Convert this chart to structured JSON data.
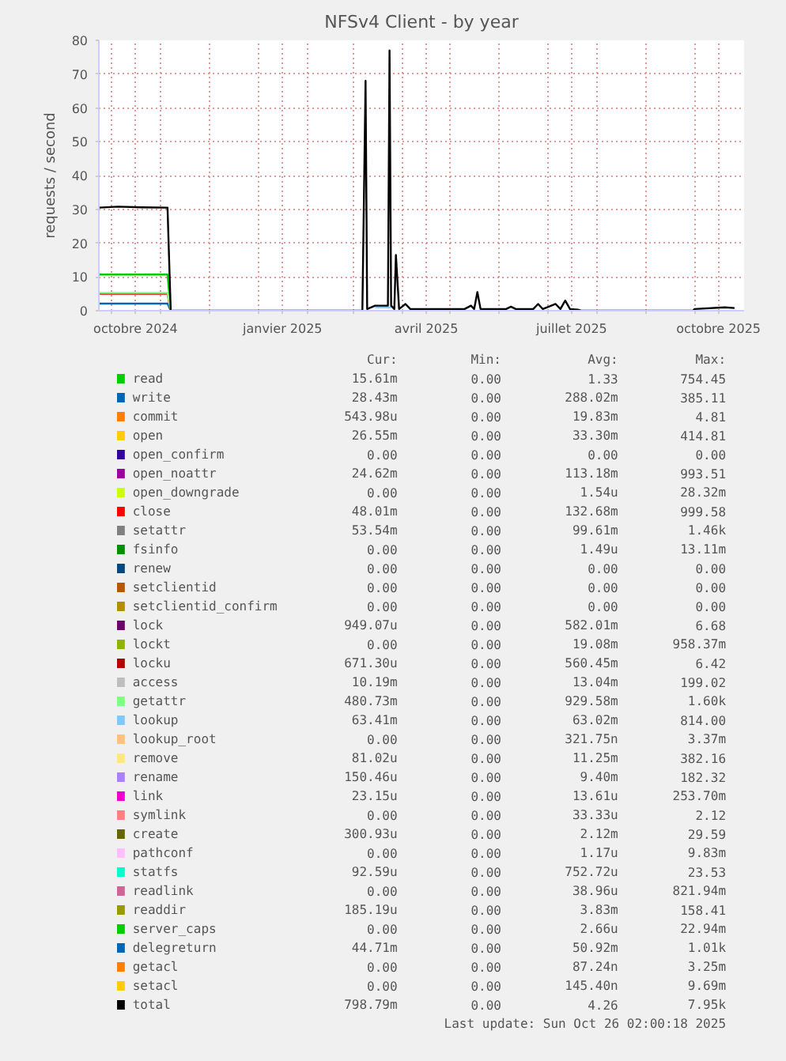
{
  "chart_data": {
    "type": "line",
    "title": "NFSv4 Client - by year",
    "ylabel": "requests / second",
    "x": [
      "2024-09-23",
      "2024-10-05",
      "2024-10-20",
      "2024-11-05",
      "2024-11-07",
      "2024-12-01",
      "2025-01-15",
      "2025-03-07",
      "2025-03-09",
      "2025-03-10",
      "2025-03-15",
      "2025-03-23",
      "2025-03-24",
      "2025-03-25",
      "2025-03-27",
      "2025-03-28",
      "2025-03-30",
      "2025-04-03",
      "2025-04-06",
      "2025-05-10",
      "2025-05-14",
      "2025-05-16",
      "2025-05-18",
      "2025-05-20",
      "2025-06-05",
      "2025-06-08",
      "2025-06-11",
      "2025-06-22",
      "2025-06-25",
      "2025-06-28",
      "2025-07-06",
      "2025-07-09",
      "2025-07-12",
      "2025-07-15",
      "2025-07-20",
      "2025-07-22",
      "2025-09-30",
      "2025-10-01",
      "2025-10-20",
      "2025-10-26"
    ],
    "xlim": [
      "2024-09-23",
      "2025-11-01"
    ],
    "xticks": [
      {
        "value": "2024-10-01",
        "label": null
      },
      {
        "value": "2024-10-16",
        "label": "octobre 2024"
      },
      {
        "value": "2024-11-01",
        "label": null
      },
      {
        "value": "2024-12-01",
        "label": null
      },
      {
        "value": "2025-01-01",
        "label": null
      },
      {
        "value": "2025-01-16",
        "label": "janvier 2025"
      },
      {
        "value": "2025-02-01",
        "label": null
      },
      {
        "value": "2025-03-01",
        "label": null
      },
      {
        "value": "2025-04-01",
        "label": null
      },
      {
        "value": "2025-04-16",
        "label": "avril 2025"
      },
      {
        "value": "2025-05-01",
        "label": null
      },
      {
        "value": "2025-06-01",
        "label": null
      },
      {
        "value": "2025-07-01",
        "label": null
      },
      {
        "value": "2025-07-16",
        "label": "juillet 2025"
      },
      {
        "value": "2025-08-01",
        "label": null
      },
      {
        "value": "2025-09-01",
        "label": null
      },
      {
        "value": "2025-10-01",
        "label": null
      },
      {
        "value": "2025-10-16",
        "label": "octobre 2025"
      }
    ],
    "ylim": [
      0,
      80
    ],
    "yticks": [
      0,
      10,
      20,
      30,
      40,
      50,
      60,
      70,
      80
    ],
    "grid": true,
    "legend": "bottom",
    "series": [
      {
        "name": "read",
        "color": "#00cc00",
        "x": [
          "2024-09-23",
          "2024-10-05",
          "2024-10-20",
          "2024-11-05",
          "2024-11-07"
        ],
        "values": [
          10.7,
          10.7,
          10.7,
          10.7,
          0
        ]
      },
      {
        "name": "write",
        "color": "#0066b3",
        "x": [
          "2024-09-23",
          "2024-10-05",
          "2024-10-20",
          "2024-11-05",
          "2024-11-07"
        ],
        "values": [
          2.1,
          2.1,
          2.1,
          2.1,
          0
        ]
      },
      {
        "name": "commit",
        "color": "#ff8000",
        "values": [
          null,
          null,
          null,
          null,
          null,
          null,
          null,
          null,
          null,
          null,
          null,
          null,
          null,
          null,
          null,
          null,
          null,
          null,
          null,
          null,
          null,
          null,
          null,
          null,
          null,
          null,
          null,
          null,
          null,
          null,
          null,
          null,
          null,
          null,
          null,
          null,
          null,
          null,
          null,
          null
        ]
      },
      {
        "name": "open",
        "color": "#ffcc00",
        "values": [
          null,
          null,
          null,
          null,
          null,
          null,
          null,
          null,
          null,
          null,
          null,
          null,
          null,
          null,
          null,
          null,
          null,
          null,
          null,
          null,
          null,
          null,
          null,
          null,
          null,
          null,
          null,
          null,
          null,
          null,
          null,
          null,
          null,
          null,
          null,
          null,
          null,
          null,
          null,
          null
        ]
      },
      {
        "name": "open_confirm",
        "color": "#330099",
        "values": [
          null,
          null,
          null,
          null,
          null,
          null,
          null,
          null,
          null,
          null,
          null,
          null,
          null,
          null,
          null,
          null,
          null,
          null,
          null,
          null,
          null,
          null,
          null,
          null,
          null,
          null,
          null,
          null,
          null,
          null,
          null,
          null,
          null,
          null,
          null,
          null,
          null,
          null,
          null,
          null
        ]
      },
      {
        "name": "open_noattr",
        "color": "#990099",
        "values": [
          null,
          null,
          null,
          null,
          null,
          null,
          null,
          null,
          null,
          null,
          null,
          null,
          null,
          null,
          null,
          null,
          null,
          null,
          null,
          null,
          null,
          null,
          null,
          null,
          null,
          null,
          null,
          null,
          null,
          null,
          null,
          null,
          null,
          null,
          null,
          null,
          null,
          null,
          null,
          null
        ]
      },
      {
        "name": "open_downgrade",
        "color": "#ccff00",
        "values": [
          null,
          null,
          null,
          null,
          null,
          null,
          null,
          null,
          null,
          null,
          null,
          null,
          null,
          null,
          null,
          null,
          null,
          null,
          null,
          null,
          null,
          null,
          null,
          null,
          null,
          null,
          null,
          null,
          null,
          null,
          null,
          null,
          null,
          null,
          null,
          null,
          null,
          null,
          null,
          null
        ]
      },
      {
        "name": "close",
        "color": "#ff0000",
        "x": [
          "2024-09-23",
          "2024-10-05",
          "2024-10-20",
          "2024-11-05",
          "2024-11-07"
        ],
        "values": [
          5,
          5,
          5,
          5,
          0
        ]
      },
      {
        "name": "setattr",
        "color": "#808080",
        "values": [
          null,
          null,
          null,
          null,
          null,
          null,
          null,
          null,
          null,
          null,
          null,
          null,
          null,
          null,
          null,
          null,
          null,
          null,
          null,
          null,
          null,
          null,
          null,
          null,
          null,
          null,
          null,
          null,
          null,
          null,
          null,
          null,
          null,
          null,
          null,
          null,
          null,
          null,
          null,
          null
        ]
      },
      {
        "name": "fsinfo",
        "color": "#008f00",
        "values": [
          null,
          null,
          null,
          null,
          null,
          null,
          null,
          null,
          null,
          null,
          null,
          null,
          null,
          null,
          null,
          null,
          null,
          null,
          null,
          null,
          null,
          null,
          null,
          null,
          null,
          null,
          null,
          null,
          null,
          null,
          null,
          null,
          null,
          null,
          null,
          null,
          null,
          null,
          null,
          null
        ]
      },
      {
        "name": "renew",
        "color": "#00487d",
        "values": [
          null,
          null,
          null,
          null,
          null,
          null,
          null,
          null,
          null,
          null,
          null,
          null,
          null,
          null,
          null,
          null,
          null,
          null,
          null,
          null,
          null,
          null,
          null,
          null,
          null,
          null,
          null,
          null,
          null,
          null,
          null,
          null,
          null,
          null,
          null,
          null,
          null,
          null,
          null,
          null
        ]
      },
      {
        "name": "setclientid",
        "color": "#b35a00",
        "values": [
          null,
          null,
          null,
          null,
          null,
          null,
          null,
          null,
          null,
          null,
          null,
          null,
          null,
          null,
          null,
          null,
          null,
          null,
          null,
          null,
          null,
          null,
          null,
          null,
          null,
          null,
          null,
          null,
          null,
          null,
          null,
          null,
          null,
          null,
          null,
          null,
          null,
          null,
          null,
          null
        ]
      },
      {
        "name": "setclientid_confirm",
        "color": "#b38f00",
        "values": [
          null,
          null,
          null,
          null,
          null,
          null,
          null,
          null,
          null,
          null,
          null,
          null,
          null,
          null,
          null,
          null,
          null,
          null,
          null,
          null,
          null,
          null,
          null,
          null,
          null,
          null,
          null,
          null,
          null,
          null,
          null,
          null,
          null,
          null,
          null,
          null,
          null,
          null,
          null,
          null
        ]
      },
      {
        "name": "lock",
        "color": "#6b006b",
        "values": [
          null,
          null,
          null,
          null,
          null,
          null,
          null,
          null,
          null,
          null,
          null,
          null,
          null,
          null,
          null,
          null,
          null,
          null,
          null,
          null,
          null,
          null,
          null,
          null,
          null,
          null,
          null,
          null,
          null,
          null,
          null,
          null,
          null,
          null,
          null,
          null,
          null,
          null,
          null,
          null
        ]
      },
      {
        "name": "lockt",
        "color": "#8fb300",
        "values": [
          null,
          null,
          null,
          null,
          null,
          null,
          null,
          null,
          null,
          null,
          null,
          null,
          null,
          null,
          null,
          null,
          null,
          null,
          null,
          null,
          null,
          null,
          null,
          null,
          null,
          null,
          null,
          null,
          null,
          null,
          null,
          null,
          null,
          null,
          null,
          null,
          null,
          null,
          null,
          null
        ]
      },
      {
        "name": "locku",
        "color": "#b30000",
        "values": [
          null,
          null,
          null,
          null,
          null,
          null,
          null,
          null,
          null,
          null,
          null,
          null,
          null,
          null,
          null,
          null,
          null,
          null,
          null,
          null,
          null,
          null,
          null,
          null,
          null,
          null,
          null,
          null,
          null,
          null,
          null,
          null,
          null,
          null,
          null,
          null,
          null,
          null,
          null,
          null
        ]
      },
      {
        "name": "access",
        "color": "#bebebe",
        "values": [
          null,
          null,
          null,
          null,
          null,
          null,
          null,
          null,
          null,
          null,
          null,
          null,
          null,
          null,
          null,
          null,
          null,
          null,
          null,
          null,
          null,
          null,
          null,
          null,
          null,
          null,
          null,
          null,
          null,
          null,
          null,
          null,
          null,
          null,
          null,
          null,
          null,
          null,
          null,
          null
        ]
      },
      {
        "name": "getattr",
        "color": "#80ff80",
        "x": [
          "2024-09-23",
          "2024-10-05",
          "2024-10-20",
          "2024-11-05",
          "2024-11-07"
        ],
        "values": [
          5.3,
          5.3,
          5.3,
          5.3,
          0
        ]
      },
      {
        "name": "lookup",
        "color": "#80c9ff",
        "values": [
          null,
          null,
          null,
          null,
          null,
          null,
          null,
          null,
          null,
          null,
          1,
          1,
          1,
          1,
          null,
          null,
          null,
          null,
          null,
          null,
          null,
          null,
          null,
          null,
          null,
          null,
          null,
          null,
          null,
          null,
          null,
          null,
          null,
          null,
          null,
          null,
          null,
          null,
          null,
          null
        ]
      },
      {
        "name": "lookup_root",
        "color": "#ffc080",
        "values": [
          null,
          null,
          null,
          null,
          null,
          null,
          null,
          null,
          null,
          null,
          null,
          null,
          null,
          null,
          null,
          null,
          null,
          null,
          null,
          null,
          null,
          null,
          null,
          null,
          null,
          null,
          null,
          null,
          null,
          null,
          null,
          null,
          null,
          null,
          null,
          null,
          null,
          null,
          null,
          null
        ]
      },
      {
        "name": "remove",
        "color": "#ffe680",
        "values": [
          null,
          null,
          null,
          null,
          null,
          null,
          null,
          null,
          null,
          null,
          null,
          null,
          null,
          null,
          null,
          null,
          null,
          null,
          null,
          null,
          null,
          null,
          null,
          null,
          null,
          null,
          null,
          null,
          null,
          null,
          null,
          null,
          null,
          null,
          null,
          null,
          null,
          null,
          null,
          null
        ]
      },
      {
        "name": "rename",
        "color": "#aa80ff",
        "values": [
          null,
          null,
          null,
          null,
          null,
          null,
          null,
          null,
          null,
          null,
          null,
          null,
          null,
          null,
          null,
          null,
          null,
          null,
          null,
          null,
          null,
          null,
          null,
          null,
          null,
          null,
          null,
          null,
          null,
          null,
          null,
          null,
          null,
          null,
          null,
          null,
          null,
          null,
          null,
          null
        ]
      },
      {
        "name": "link",
        "color": "#ee00cc",
        "values": [
          null,
          null,
          null,
          null,
          null,
          null,
          null,
          null,
          null,
          null,
          null,
          null,
          null,
          null,
          null,
          null,
          null,
          null,
          null,
          null,
          null,
          null,
          null,
          null,
          null,
          null,
          null,
          null,
          null,
          null,
          null,
          null,
          null,
          null,
          null,
          null,
          null,
          null,
          null,
          null
        ]
      },
      {
        "name": "symlink",
        "color": "#ff8080",
        "values": [
          null,
          null,
          null,
          null,
          null,
          null,
          null,
          null,
          null,
          null,
          null,
          null,
          null,
          null,
          null,
          null,
          null,
          null,
          null,
          null,
          null,
          null,
          null,
          null,
          null,
          null,
          null,
          null,
          null,
          null,
          null,
          null,
          null,
          null,
          null,
          null,
          null,
          null,
          null,
          null
        ]
      },
      {
        "name": "create",
        "color": "#666600",
        "values": [
          null,
          null,
          null,
          null,
          null,
          null,
          null,
          null,
          null,
          null,
          null,
          null,
          null,
          null,
          null,
          null,
          null,
          null,
          null,
          null,
          null,
          null,
          null,
          null,
          null,
          null,
          null,
          null,
          null,
          null,
          null,
          null,
          null,
          null,
          null,
          null,
          null,
          null,
          null,
          null
        ]
      },
      {
        "name": "pathconf",
        "color": "#ffbfff",
        "values": [
          null,
          null,
          null,
          null,
          null,
          null,
          null,
          null,
          null,
          null,
          null,
          null,
          null,
          null,
          null,
          null,
          null,
          null,
          null,
          null,
          null,
          null,
          null,
          null,
          null,
          null,
          null,
          null,
          null,
          null,
          null,
          null,
          null,
          null,
          null,
          null,
          null,
          null,
          null,
          null
        ]
      },
      {
        "name": "statfs",
        "color": "#00ffcc",
        "values": [
          null,
          null,
          null,
          null,
          null,
          null,
          null,
          null,
          null,
          null,
          null,
          null,
          null,
          null,
          null,
          null,
          null,
          null,
          null,
          null,
          null,
          null,
          null,
          null,
          null,
          null,
          null,
          null,
          null,
          null,
          null,
          null,
          null,
          null,
          null,
          null,
          null,
          null,
          null,
          null
        ]
      },
      {
        "name": "readlink",
        "color": "#cc6699",
        "values": [
          null,
          null,
          null,
          null,
          null,
          null,
          null,
          null,
          null,
          null,
          null,
          null,
          null,
          null,
          null,
          null,
          null,
          null,
          null,
          null,
          null,
          null,
          null,
          null,
          null,
          null,
          null,
          null,
          null,
          null,
          null,
          null,
          null,
          null,
          null,
          null,
          null,
          null,
          null,
          null
        ]
      },
      {
        "name": "readdir",
        "color": "#999900",
        "values": [
          null,
          null,
          null,
          null,
          null,
          null,
          null,
          null,
          null,
          null,
          null,
          null,
          null,
          null,
          null,
          null,
          null,
          null,
          null,
          null,
          null,
          null,
          null,
          null,
          null,
          null,
          null,
          null,
          null,
          null,
          null,
          null,
          null,
          null,
          null,
          null,
          null,
          null,
          null,
          null
        ]
      },
      {
        "name": "server_caps",
        "color": "#00cc00",
        "values": [
          null,
          null,
          null,
          null,
          null,
          null,
          null,
          null,
          null,
          null,
          null,
          null,
          null,
          null,
          null,
          null,
          null,
          null,
          null,
          null,
          null,
          null,
          null,
          null,
          null,
          null,
          null,
          null,
          null,
          null,
          null,
          null,
          null,
          null,
          null,
          null,
          null,
          null,
          null,
          null
        ]
      },
      {
        "name": "delegreturn",
        "color": "#0066b3",
        "values": [
          null,
          null,
          null,
          null,
          null,
          null,
          null,
          null,
          null,
          null,
          null,
          null,
          null,
          null,
          null,
          null,
          null,
          null,
          null,
          null,
          null,
          null,
          null,
          null,
          null,
          null,
          null,
          null,
          null,
          null,
          null,
          null,
          null,
          null,
          null,
          null,
          null,
          null,
          null,
          null
        ]
      },
      {
        "name": "getacl",
        "color": "#ff8000",
        "values": [
          null,
          null,
          null,
          null,
          null,
          null,
          null,
          null,
          null,
          null,
          null,
          null,
          null,
          null,
          null,
          null,
          null,
          null,
          null,
          null,
          null,
          null,
          null,
          null,
          null,
          null,
          null,
          null,
          null,
          null,
          null,
          null,
          null,
          null,
          null,
          null,
          null,
          null,
          null,
          null
        ]
      },
      {
        "name": "setacl",
        "color": "#ffcc00",
        "values": [
          null,
          null,
          null,
          null,
          null,
          null,
          null,
          null,
          null,
          null,
          null,
          null,
          null,
          null,
          null,
          null,
          null,
          null,
          null,
          null,
          null,
          null,
          null,
          null,
          null,
          null,
          null,
          null,
          null,
          null,
          null,
          null,
          null,
          null,
          null,
          null,
          null,
          null,
          null,
          null
        ]
      },
      {
        "name": "total",
        "color": "#000000",
        "values": [
          30.5,
          30.8,
          30.6,
          30.5,
          0,
          0,
          0,
          0,
          68,
          0.5,
          1.5,
          1.5,
          77,
          1.5,
          0.5,
          16.5,
          0.5,
          2,
          0.5,
          0.5,
          1.5,
          0.5,
          5.5,
          0.5,
          0.5,
          1.2,
          0.5,
          0.5,
          2,
          0.5,
          2,
          0.5,
          3,
          0.5,
          0.3,
          0,
          0,
          0.5,
          1,
          0.8
        ]
      }
    ],
    "annotations": [
      "Cur:",
      "Min:",
      "Avg:",
      "Max:",
      "15.61m",
      "0.00",
      "1.33",
      "754.45",
      "28.43m",
      "0.00",
      "288.02m",
      "385.11",
      "543.98u",
      "0.00",
      "19.83m",
      "4.81",
      "26.55m",
      "0.00",
      "33.30m",
      "414.81",
      "0.00",
      "0.00",
      "0.00",
      "0.00",
      "24.62m",
      "0.00",
      "113.18m",
      "993.51",
      "0.00",
      "0.00",
      "1.54u",
      "28.32m",
      "48.01m",
      "0.00",
      "132.68m",
      "999.58",
      "53.54m",
      "0.00",
      "99.61m",
      "1.46k",
      "0.00",
      "0.00",
      "1.49u",
      "13.11m",
      "0.00",
      "0.00",
      "0.00",
      "0.00",
      "0.00",
      "0.00",
      "0.00",
      "0.00",
      "0.00",
      "0.00",
      "0.00",
      "0.00",
      "949.07u",
      "0.00",
      "582.01m",
      "6.68",
      "0.00",
      "0.00",
      "19.08m",
      "958.37m",
      "671.30u",
      "0.00",
      "560.45m",
      "6.42",
      "10.19m",
      "0.00",
      "13.04m",
      "199.02",
      "480.73m",
      "0.00",
      "929.58m",
      "1.60k",
      "63.41m",
      "0.00",
      "63.02m",
      "814.00",
      "0.00",
      "0.00",
      "321.75n",
      "3.37m",
      "81.02u",
      "0.00",
      "11.25m",
      "382.16",
      "150.46u",
      "0.00",
      "9.40m",
      "182.32",
      "23.15u",
      "0.00",
      "13.61u",
      "253.70m",
      "0.00",
      "0.00",
      "33.33u",
      "2.12",
      "300.93u",
      "0.00",
      "2.12m",
      "29.59",
      "0.00",
      "0.00",
      "1.17u",
      "9.83m",
      "92.59u",
      "0.00",
      "752.72u",
      "23.53",
      "0.00",
      "0.00",
      "38.96u",
      "821.94m",
      "185.19u",
      "0.00",
      "3.83m",
      "158.41",
      "0.00",
      "0.00",
      "2.66u",
      "22.94m",
      "44.71m",
      "0.00",
      "50.92m",
      "1.01k",
      "0.00",
      "0.00",
      "87.24n",
      "3.25m",
      "0.00",
      "0.00",
      "145.40n",
      "9.69m",
      "798.79m",
      "0.00",
      "4.26",
      "7.95k",
      "Last update: Sun Oct 26 02:00:18 2025"
    ]
  }
}
